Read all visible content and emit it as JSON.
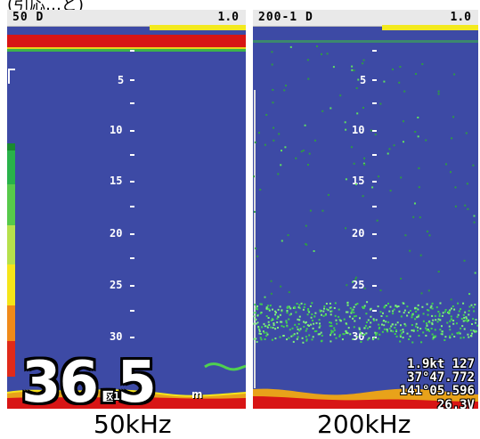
{
  "top_strip_fragment": "(引応…ど)",
  "left_panel": {
    "channel_label": "50  D",
    "gain_value": "1.0",
    "depth_ticks": [
      "5",
      "10",
      "15",
      "20",
      "25",
      "30"
    ],
    "depth_readout": "36.5",
    "depth_unit": "m",
    "zoom_label": "x1"
  },
  "right_panel": {
    "channel_label": "200-1  D",
    "gain_value": "1.0",
    "depth_ticks": [
      "5",
      "10",
      "15",
      "20",
      "25",
      "30"
    ],
    "speed_heading": "1.9kt 127",
    "latitude": "37°47.772",
    "longitude": "141°05.596",
    "voltage": "26.3V"
  },
  "captions": {
    "left": "50kHz",
    "right": "200kHz"
  },
  "colors": {
    "sonar_background": "#3d4aa5",
    "surface_red": "#d81515",
    "gain_yellow": "#f3ea1e",
    "echo_green": "#3cb24a"
  }
}
